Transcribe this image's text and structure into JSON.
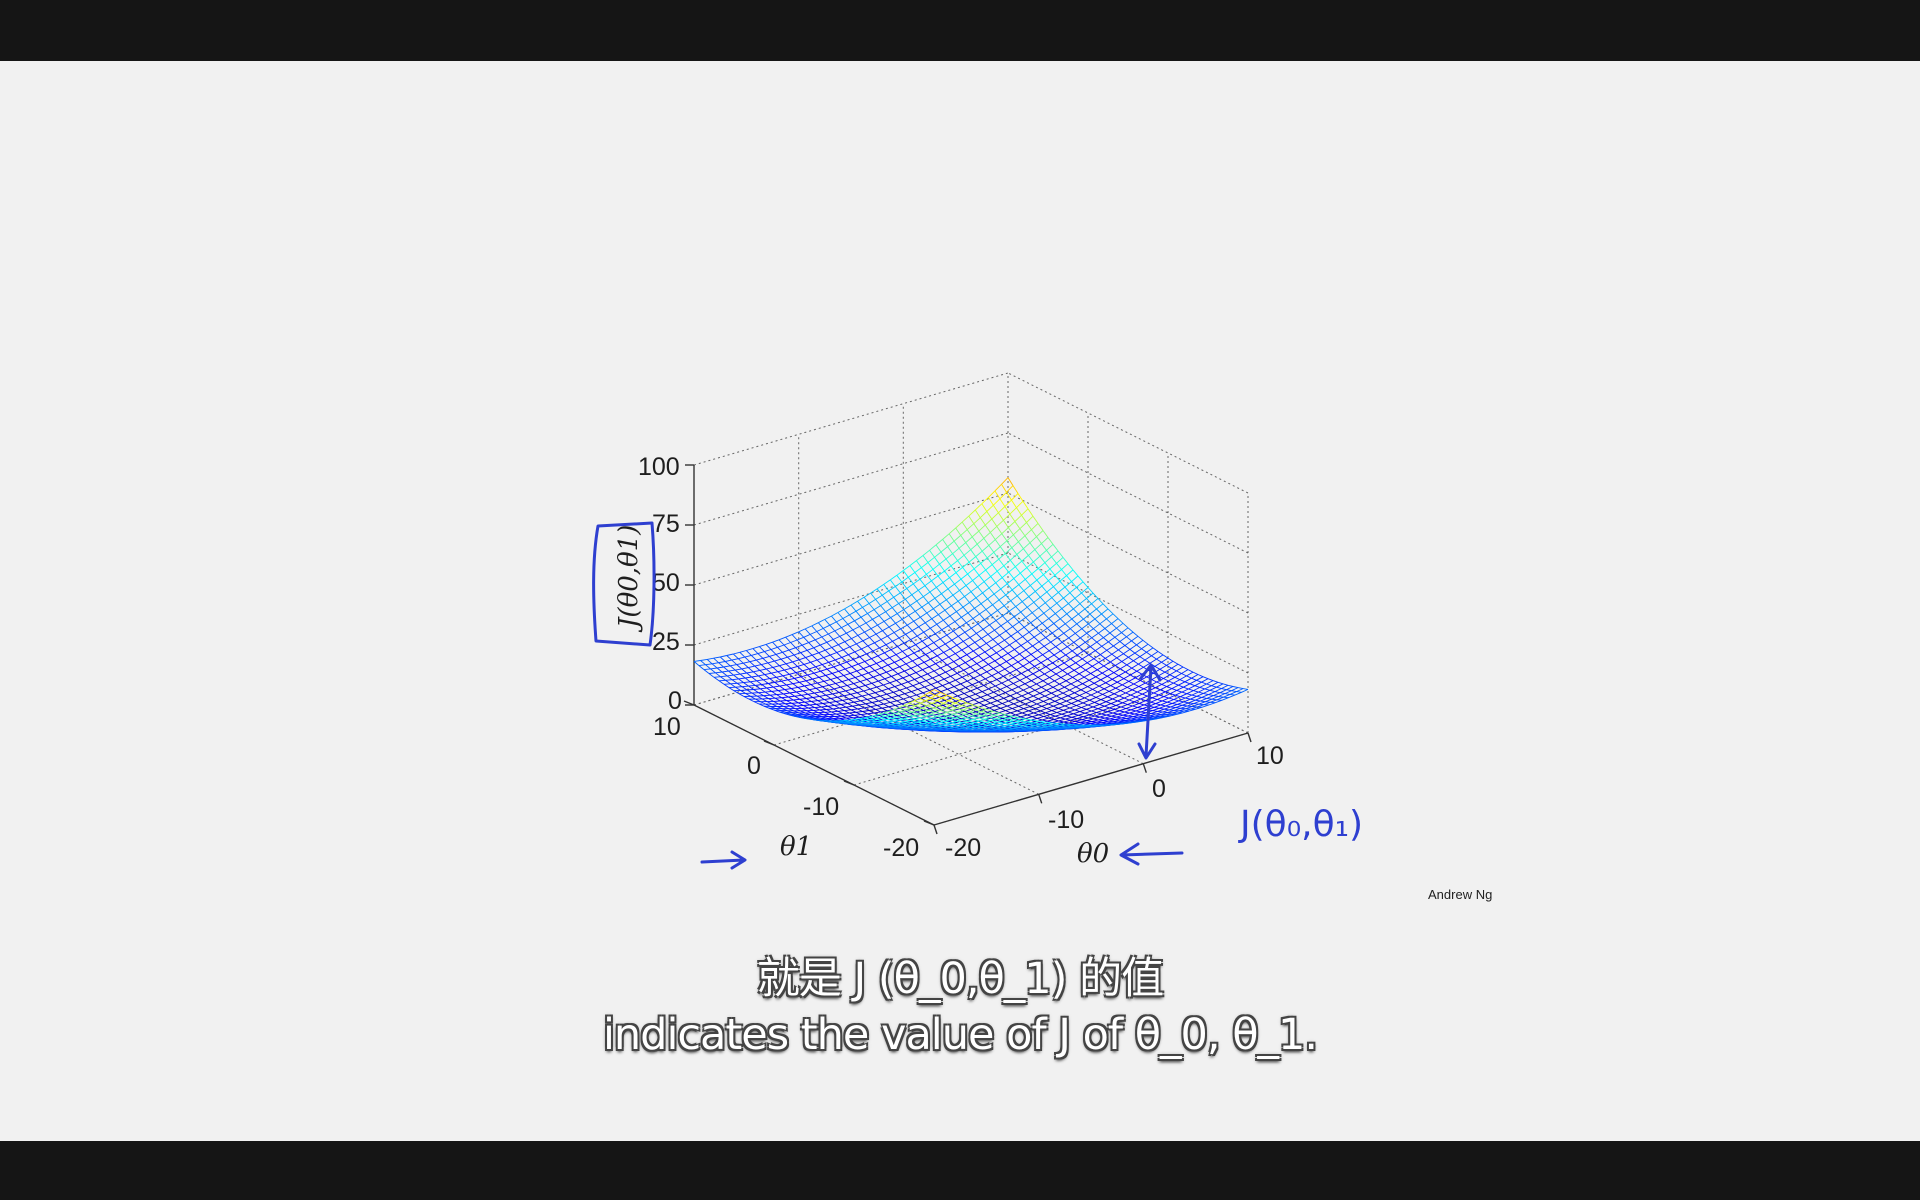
{
  "chart": {
    "z_ticks": [
      "100",
      "75",
      "50",
      "25",
      "0"
    ],
    "theta1_ticks": [
      "10",
      "0",
      "-10",
      "-20"
    ],
    "theta0_ticks": [
      "-20",
      "-10",
      "0",
      "10"
    ],
    "z_label": "J(θ0,θ1)",
    "x_label": "θ0",
    "y_label": "θ1"
  },
  "chart_data": {
    "type": "surface",
    "xlabel": "θ0",
    "ylabel": "θ1",
    "zlabel": "J(θ0,θ1)",
    "xlim": [
      -20,
      10
    ],
    "ylim": [
      -20,
      10
    ],
    "zlim": [
      0,
      100
    ],
    "x_ticks": [
      -20,
      -10,
      0,
      10
    ],
    "y_ticks": [
      -20,
      -10,
      0,
      10
    ],
    "z_ticks": [
      0,
      25,
      50,
      75,
      100
    ],
    "grid": true,
    "colormap": "jet"
  },
  "annotations": {
    "handwritten_formula": "J(θ₀,θ₁)"
  },
  "credit": "Andrew Ng",
  "subtitles": {
    "chinese": "就是 J (θ_0,θ_1) 的值",
    "english": "indicates the value of J of θ_0, θ_1."
  },
  "colors": {
    "ink": "#2e3fd0",
    "background": "#f1f1f1"
  }
}
